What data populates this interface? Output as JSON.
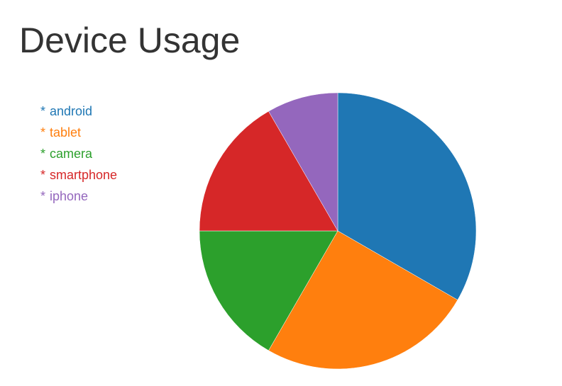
{
  "chart_data": {
    "type": "pie",
    "title": "Device Usage",
    "legend_position": "top-left",
    "legend_bullet": "*",
    "start_angle": "12 o'clock",
    "direction": "clockwise",
    "slices": [
      {
        "label": "android",
        "value": 4,
        "color": "#1f77b4"
      },
      {
        "label": "tablet",
        "value": 3,
        "color": "#ff7f0e"
      },
      {
        "label": "camera",
        "value": 2,
        "color": "#2ca02c"
      },
      {
        "label": "smartphone",
        "value": 2,
        "color": "#d62728"
      },
      {
        "label": "iphone",
        "value": 1,
        "color": "#9467bd"
      }
    ]
  }
}
